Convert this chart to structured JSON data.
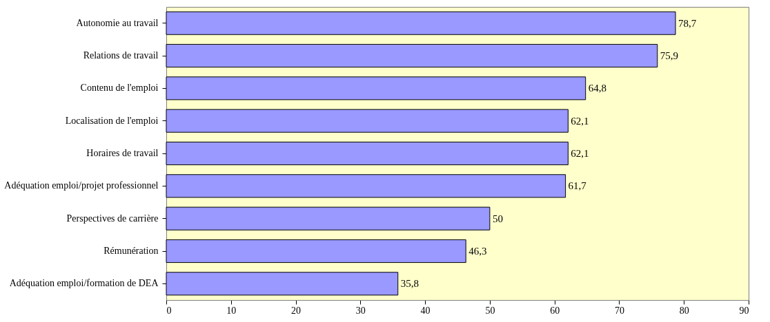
{
  "chart_data": {
    "type": "bar",
    "orientation": "horizontal",
    "categories": [
      "Autonomie au travail",
      "Relations de travail",
      "Contenu de l'emploi",
      "Localisation de l'emploi",
      "Horaires de travail",
      "Adéquation emploi/projet professionnel",
      "Perspectives de carrière",
      "Rémunération",
      "Adéquation emploi/formation de DEA"
    ],
    "values": [
      78.7,
      75.9,
      64.8,
      62.1,
      62.1,
      61.7,
      50,
      46.3,
      35.8
    ],
    "value_labels": [
      "78,7",
      "75,9",
      "64,8",
      "62,1",
      "62,1",
      "61,7",
      "50",
      "46,3",
      "35,8"
    ],
    "color": "#9999ff",
    "xlim": [
      0,
      90
    ],
    "xticks": [
      0,
      10,
      20,
      30,
      40,
      50,
      60,
      70,
      80,
      90
    ],
    "grid": false
  }
}
